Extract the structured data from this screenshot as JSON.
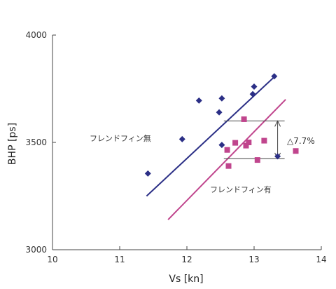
{
  "chart_data": {
    "type": "scatter",
    "xlabel": "Vs [kn]",
    "ylabel": "BHP [ps]",
    "xlim": [
      10,
      14
    ],
    "ylim": [
      3000,
      4000
    ],
    "xticks": [
      "10",
      "11",
      "12",
      "13",
      "14"
    ],
    "yticks": [
      "3000",
      "3500",
      "4000"
    ],
    "grid": false,
    "series": [
      {
        "name": "フレンドフィン無",
        "marker": "diamond",
        "color": "#2b2f86",
        "points": [
          [
            11.42,
            3355
          ],
          [
            11.93,
            3515
          ],
          [
            12.18,
            3695
          ],
          [
            12.48,
            3640
          ],
          [
            12.52,
            3705
          ],
          [
            12.52,
            3488
          ],
          [
            12.98,
            3725
          ],
          [
            13.0,
            3760
          ],
          [
            13.3,
            3808
          ],
          [
            13.35,
            3435
          ]
        ],
        "fit_line": [
          [
            11.4,
            3250
          ],
          [
            13.3,
            3805
          ]
        ]
      },
      {
        "name": "フレンドフィン有",
        "marker": "square",
        "color": "#c0458d",
        "points": [
          [
            12.6,
            3465
          ],
          [
            12.62,
            3390
          ],
          [
            12.72,
            3498
          ],
          [
            12.85,
            3608
          ],
          [
            12.88,
            3485
          ],
          [
            12.92,
            3500
          ],
          [
            13.05,
            3418
          ],
          [
            13.15,
            3508
          ],
          [
            13.62,
            3460
          ]
        ],
        "fit_line": [
          [
            11.72,
            3140
          ],
          [
            13.47,
            3700
          ]
        ]
      }
    ],
    "annotations": {
      "label_without": "フレンドフィン無",
      "label_with": "フレンドフィン有",
      "difference": "△7.7%",
      "diff_upper": 3600,
      "diff_lower": 3425,
      "diff_x_from": 12.55,
      "diff_x_to": 13.35
    }
  }
}
